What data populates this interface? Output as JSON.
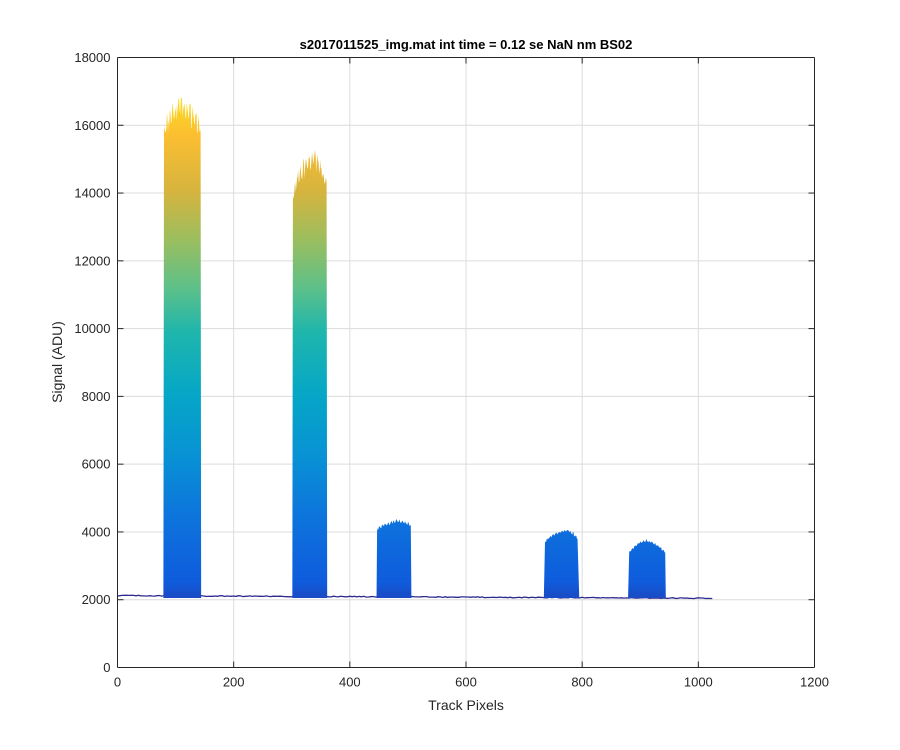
{
  "chart_data": {
    "type": "area",
    "title": "s2017011525_img.mat int time = 0.12 se  NaN nm BS02",
    "xlabel": "Track Pixels",
    "ylabel": "Signal (ADU)",
    "xlim": [
      0,
      1200
    ],
    "ylim": [
      0,
      18000
    ],
    "xticks": [
      0,
      200,
      400,
      600,
      800,
      1000,
      1200
    ],
    "yticks": [
      0,
      2000,
      4000,
      6000,
      8000,
      10000,
      12000,
      14000,
      16000,
      18000
    ],
    "xtick_labels": [
      "0",
      "200",
      "400",
      "600",
      "800",
      "1000",
      "1200"
    ],
    "ytick_labels": [
      "0",
      "2000",
      "4000",
      "6000",
      "8000",
      "10000",
      "12000",
      "14000",
      "16000",
      "18000"
    ],
    "grid": true,
    "colormap": "parula",
    "baseline": 2050,
    "x_extent": [
      0,
      1024
    ],
    "peaks": [
      {
        "x_start": 79,
        "x_end": 144,
        "peak_value": 16600,
        "profile": [
          [
            80,
            15800
          ],
          [
            90,
            16300
          ],
          [
            100,
            16400
          ],
          [
            110,
            16500
          ],
          [
            120,
            16400
          ],
          [
            130,
            16200
          ],
          [
            140,
            16000
          ],
          [
            143,
            15900
          ]
        ]
      },
      {
        "x_start": 301,
        "x_end": 361,
        "peak_value": 15100,
        "profile": [
          [
            302,
            14000
          ],
          [
            310,
            14400
          ],
          [
            320,
            14700
          ],
          [
            330,
            14900
          ],
          [
            340,
            15000
          ],
          [
            350,
            14700
          ],
          [
            358,
            14400
          ],
          [
            360,
            14300
          ]
        ]
      },
      {
        "x_start": 446,
        "x_end": 506,
        "peak_value": 4400,
        "profile": [
          [
            447,
            4100
          ],
          [
            460,
            4200
          ],
          [
            470,
            4250
          ],
          [
            480,
            4350
          ],
          [
            490,
            4300
          ],
          [
            500,
            4250
          ],
          [
            505,
            4200
          ]
        ]
      },
      {
        "x_start": 734,
        "x_end": 795,
        "peak_value": 4100,
        "profile": [
          [
            736,
            3700
          ],
          [
            745,
            3850
          ],
          [
            755,
            3950
          ],
          [
            765,
            4000
          ],
          [
            775,
            4050
          ],
          [
            785,
            3950
          ],
          [
            792,
            3800
          ]
        ]
      },
      {
        "x_start": 879,
        "x_end": 944,
        "peak_value": 3800,
        "profile": [
          [
            881,
            3400
          ],
          [
            890,
            3550
          ],
          [
            900,
            3700
          ],
          [
            910,
            3750
          ],
          [
            920,
            3700
          ],
          [
            930,
            3600
          ],
          [
            940,
            3450
          ],
          [
            943,
            3400
          ]
        ]
      }
    ]
  }
}
